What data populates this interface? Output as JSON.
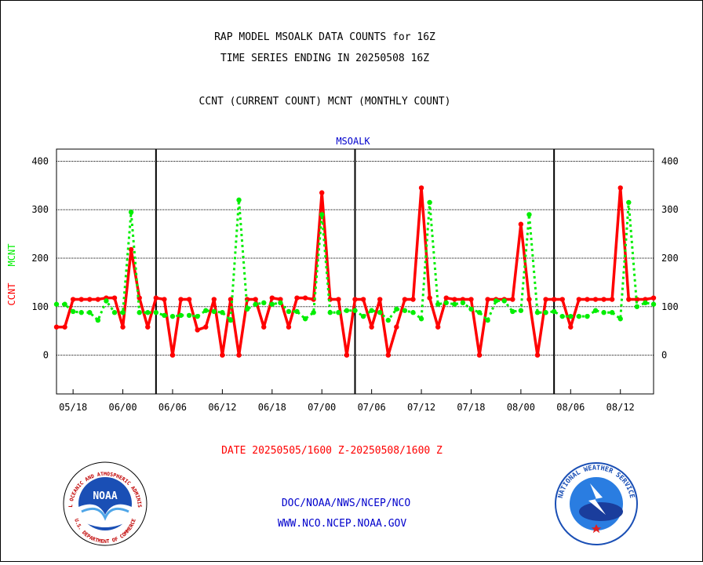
{
  "header": {
    "title_line1": "RAP MODEL MSOALK DATA COUNTS for 16Z",
    "title_line2": "TIME SERIES ENDING IN 20250508 16Z",
    "subtitle": "CCNT (CURRENT COUNT) MCNT (MONTHLY COUNT)"
  },
  "chart_data": {
    "type": "line",
    "title": "MSOALK",
    "ylabel_left": [
      "CCNT",
      "MCNT"
    ],
    "ylim": [
      -80,
      425
    ],
    "yticks": [
      0,
      100,
      200,
      300,
      400
    ],
    "xtick_labels": [
      "05/18",
      "06/00",
      "06/06",
      "06/12",
      "06/18",
      "07/00",
      "07/06",
      "07/12",
      "07/18",
      "08/00",
      "08/06",
      "08/12"
    ],
    "xrange": [
      0,
      72
    ],
    "day_boundaries": [
      12,
      36,
      60
    ],
    "grid": true,
    "colors": {
      "CCNT": "#ff0000",
      "MCNT": "#00ee00"
    },
    "series": [
      {
        "name": "CCNT",
        "values": [
          58,
          58,
          115,
          115,
          115,
          115,
          118,
          118,
          58,
          218,
          118,
          58,
          118,
          115,
          0,
          115,
          115,
          52,
          58,
          115,
          0,
          115,
          0,
          115,
          115,
          58,
          118,
          115,
          58,
          118,
          118,
          115,
          335,
          115,
          115,
          0,
          115,
          115,
          58,
          115,
          0,
          58,
          115,
          115,
          345,
          118,
          58,
          118,
          115,
          115,
          115,
          0,
          115,
          115,
          115,
          115,
          270,
          115,
          0,
          115,
          115,
          115,
          58,
          115,
          115,
          115,
          115,
          115,
          345,
          115,
          115,
          115,
          118
        ]
      },
      {
        "name": "MCNT",
        "values": [
          105,
          105,
          90,
          88,
          88,
          72,
          112,
          88,
          88,
          295,
          88,
          88,
          88,
          82,
          80,
          82,
          82,
          80,
          92,
          90,
          88,
          72,
          320,
          95,
          105,
          108,
          105,
          108,
          90,
          90,
          75,
          88,
          290,
          88,
          88,
          92,
          92,
          80,
          92,
          88,
          72,
          95,
          92,
          88,
          75,
          315,
          105,
          108,
          105,
          108,
          95,
          88,
          72,
          112,
          112,
          90,
          92,
          290,
          88,
          88,
          90,
          80,
          80,
          80,
          80,
          92,
          88,
          88,
          75,
          315,
          100,
          108,
          105
        ]
      }
    ],
    "date_caption": "DATE 20250505/1600 Z-20250508/1600 Z"
  },
  "footer": {
    "link1": "DOC/NOAA/NWS/NCEP/NCO",
    "link2": "WWW.NCO.NCEP.NOAA.GOV",
    "noaa_logo_text": "NOAA",
    "noaa_ring_text": "NATIONAL OCEANIC AND ATMOSPHERIC ADMINISTRATION",
    "noaa_bottom_text": "U.S. DEPARTMENT OF COMMERCE",
    "nws_ring_text": "NATIONAL WEATHER SERVICE"
  }
}
